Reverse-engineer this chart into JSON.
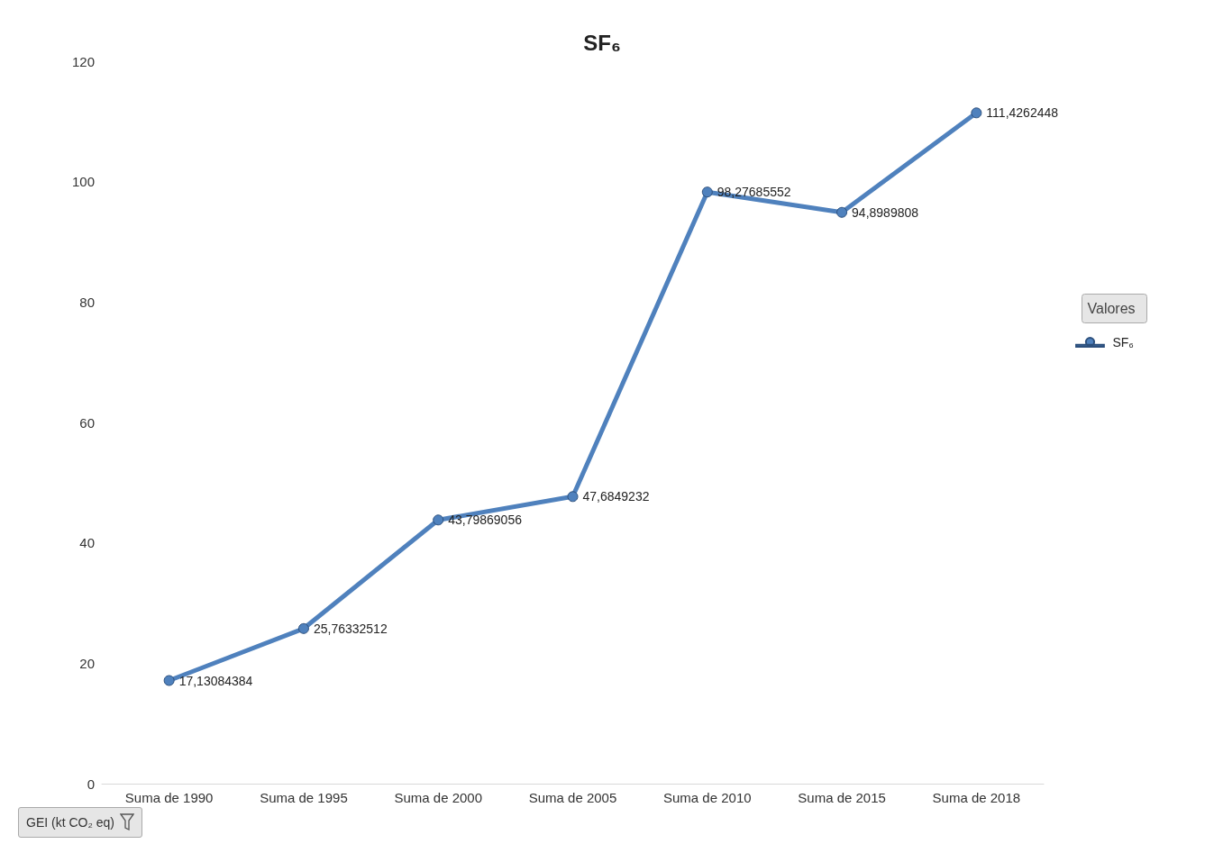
{
  "chart_data": {
    "type": "line",
    "title": "SF₆",
    "legend_title": "Valores",
    "categories": [
      "Suma de 1990",
      "Suma de 1995",
      "Suma de 2000",
      "Suma de 2005",
      "Suma de 2010",
      "Suma de 2015",
      "Suma de 2018"
    ],
    "series": [
      {
        "name": "SF₆",
        "color": "#4f81bd",
        "values": [
          17.13084384,
          25.76332512,
          43.79869056,
          47.6849232,
          98.27685552,
          94.8989808,
          111.4262448
        ],
        "value_labels": [
          "17,13084384",
          "25,76332512",
          "43,79869056",
          "47,6849232",
          "98,27685552",
          "94,8989808",
          "111,4262448"
        ]
      }
    ],
    "ylim": [
      0,
      120
    ],
    "yticks": [
      0,
      20,
      40,
      60,
      80,
      100,
      120
    ],
    "grid": false,
    "legend": "right",
    "marker": "circle",
    "line_style": "solid",
    "annotations": [
      "GEI (kt CO₂ eq)"
    ]
  }
}
